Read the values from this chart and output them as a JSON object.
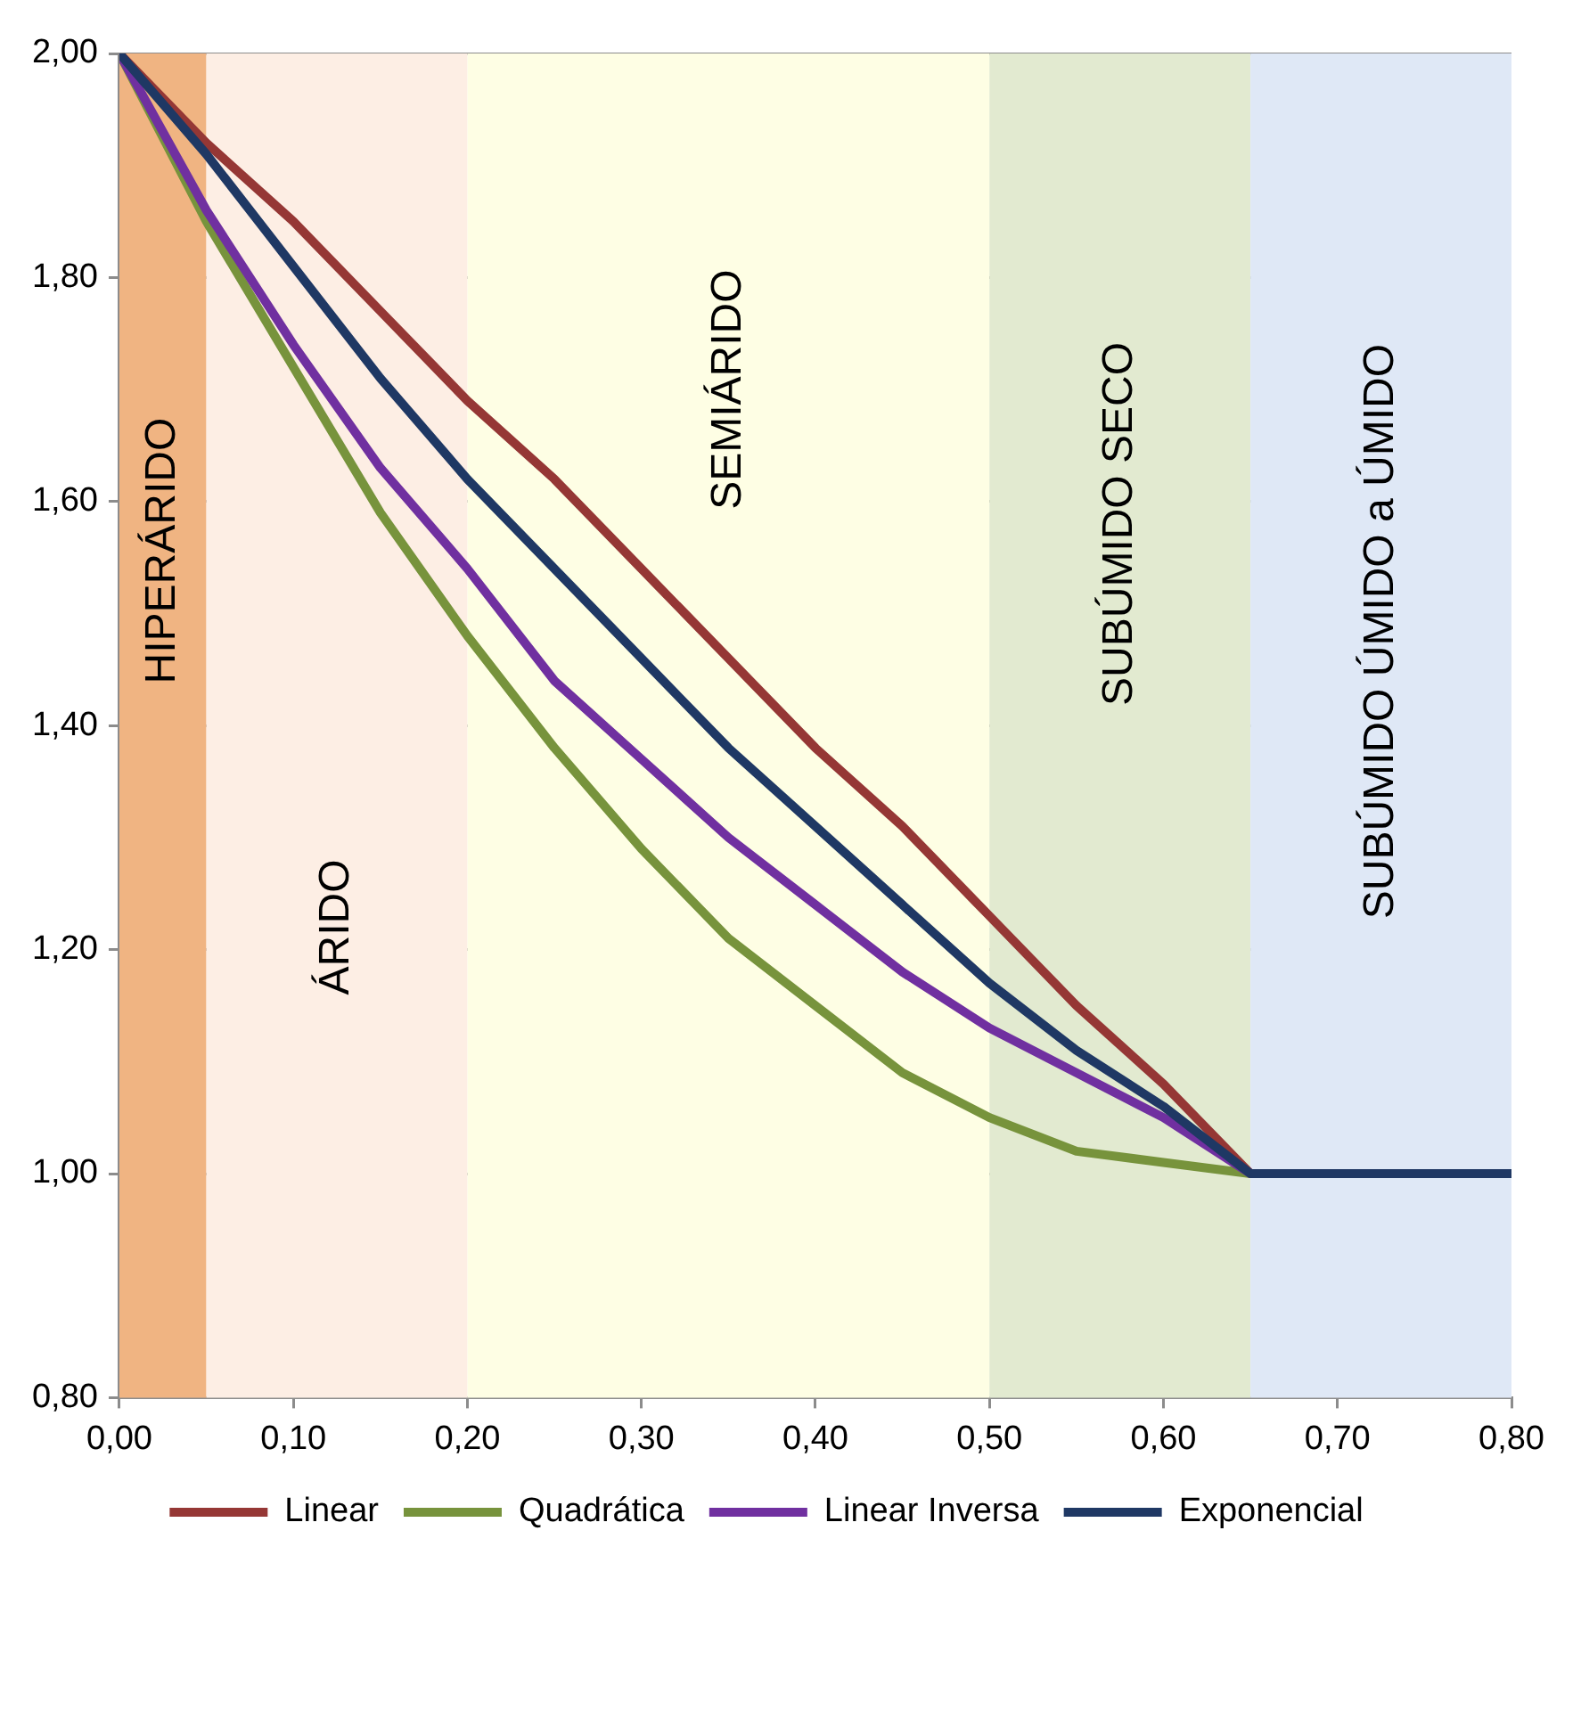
{
  "chart_data": {
    "type": "line",
    "x": [
      0,
      0.05,
      0.1,
      0.15,
      0.2,
      0.25,
      0.3,
      0.35,
      0.4,
      0.45,
      0.5,
      0.55,
      0.6,
      0.65,
      0.7,
      0.75,
      0.8
    ],
    "series": [
      {
        "name": "Linear",
        "color": "#953735",
        "values": [
          2.0,
          1.92,
          1.85,
          1.77,
          1.69,
          1.62,
          1.54,
          1.46,
          1.38,
          1.31,
          1.23,
          1.15,
          1.08,
          1.0,
          null,
          null,
          null
        ]
      },
      {
        "name": "Quadrática",
        "color": "#77933c",
        "values": [
          2.0,
          1.85,
          1.72,
          1.59,
          1.48,
          1.38,
          1.29,
          1.21,
          1.15,
          1.09,
          1.05,
          1.02,
          1.01,
          1.0,
          null,
          null,
          null
        ]
      },
      {
        "name": "Linear Inversa",
        "color": "#7030a0",
        "values": [
          2.0,
          1.86,
          1.74,
          1.63,
          1.54,
          1.44,
          1.37,
          1.3,
          1.24,
          1.18,
          1.13,
          1.09,
          1.05,
          1.0,
          null,
          null,
          null
        ]
      },
      {
        "name": "Exponencial",
        "color": "#1f3864",
        "values": [
          2.0,
          1.91,
          1.81,
          1.71,
          1.62,
          1.54,
          1.46,
          1.38,
          1.31,
          1.24,
          1.17,
          1.11,
          1.06,
          1.0,
          1.0,
          1.0,
          1.0
        ]
      }
    ],
    "xlim": [
      0,
      0.8
    ],
    "xticks": [
      {
        "value": 0,
        "label": "0,00"
      },
      {
        "value": 0.1,
        "label": "0,10"
      },
      {
        "value": 0.2,
        "label": "0,20"
      },
      {
        "value": 0.3,
        "label": "0,30"
      },
      {
        "value": 0.4,
        "label": "0,40"
      },
      {
        "value": 0.5,
        "label": "0,50"
      },
      {
        "value": 0.6,
        "label": "0,60"
      },
      {
        "value": 0.7,
        "label": "0,70"
      },
      {
        "value": 0.8,
        "label": "0,80"
      }
    ],
    "ylim": [
      0.8,
      2.0
    ],
    "yticks": [
      {
        "value": 0.8,
        "label": "0,80"
      },
      {
        "value": 1.0,
        "label": "1,00"
      },
      {
        "value": 1.2,
        "label": "1,20"
      },
      {
        "value": 1.4,
        "label": "1,40"
      },
      {
        "value": 1.6,
        "label": "1,60"
      },
      {
        "value": 1.8,
        "label": "1,80"
      },
      {
        "value": 2.0,
        "label": "2,00"
      }
    ],
    "bands": [
      {
        "axis": "x",
        "from": 0,
        "to": 0.05,
        "label": "HIPERÁRIDO",
        "color": "#f0b482"
      },
      {
        "axis": "x",
        "from": 0.05,
        "to": 0.2,
        "label": "ÁRIDO",
        "color": "#fdeee4"
      },
      {
        "axis": "x",
        "from": 0.2,
        "to": 0.5,
        "label": "SEMIÁRIDO",
        "color": "#fefee4"
      },
      {
        "axis": "x",
        "from": 0.5,
        "to": 0.65,
        "label": "SUBÚMIDO SECO",
        "color": "#e2ead0"
      },
      {
        "axis": "x",
        "from": 0.65,
        "to": 0.8,
        "label": "SUBÚMIDO ÚMIDO a ÚMIDO",
        "color": "#dfe8f6"
      }
    ],
    "grid": "y",
    "legend": "bottom",
    "marker": "none",
    "line_style": "solid"
  }
}
